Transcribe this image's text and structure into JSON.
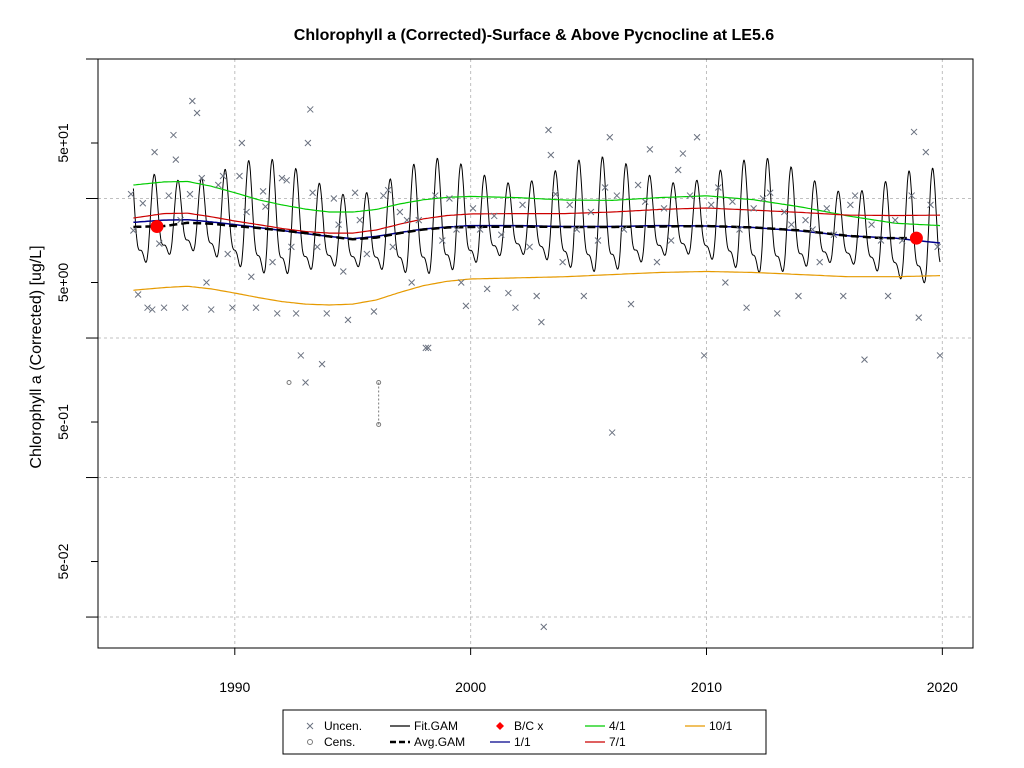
{
  "chart_data": {
    "type": "scatter",
    "title": "Chlorophyll a (Corrected)-Surface & Above Pycnocline at LE5.6",
    "ylabel": "Chlorophyll a (Corrected) [ug/L]",
    "y_scale": "log",
    "xlim": [
      1984.2,
      2021.3
    ],
    "ylim": [
      0.012,
      200
    ],
    "x_ticks": [
      1990,
      2000,
      2010,
      2020
    ],
    "x_tick_labels": [
      "1990",
      "2000",
      "2010",
      "2020"
    ],
    "y_ticks": [
      0.05,
      0.5,
      5,
      50
    ],
    "y_tick_labels": [
      "5e-02",
      "5e-01",
      "5e+00",
      "5e+01"
    ],
    "y_minor_ticks": [
      0.02,
      0.2,
      2,
      20,
      200
    ],
    "grid": true,
    "legend_position": "bottom",
    "colors": {
      "uncen": "#6b7280",
      "cens": "#7a7a7a",
      "fit_gam": "#000000",
      "avg_gam": "#000000",
      "bc": "#ff0000",
      "d11": "#00008b",
      "d41": "#00cc00",
      "d71": "#cc0000",
      "d101": "#e69a00"
    },
    "legend": [
      {
        "key": "uncen",
        "label": "Uncen.",
        "symbol": "cross"
      },
      {
        "key": "cens",
        "label": "Cens.",
        "symbol": "circle"
      },
      {
        "key": "fit_gam",
        "label": "Fit.GAM",
        "symbol": "line"
      },
      {
        "key": "avg_gam",
        "label": "Avg.GAM",
        "symbol": "dashed"
      },
      {
        "key": "bc",
        "label": "B/C x",
        "symbol": "diamond"
      },
      {
        "key": "d11",
        "label": "1/1",
        "symbol": "line"
      },
      {
        "key": "d41",
        "label": "4/1",
        "symbol": "line"
      },
      {
        "key": "d71",
        "label": "7/1",
        "symbol": "line"
      },
      {
        "key": "d101",
        "label": "10/1",
        "symbol": "line"
      }
    ],
    "bc_points": [
      {
        "x": 1986.7,
        "y": 12.6
      },
      {
        "x": 2018.9,
        "y": 10.4
      }
    ],
    "censored": [
      {
        "x": 1992.3,
        "y": 0.96
      },
      {
        "x": 1996.1,
        "y": 0.96,
        "low": 0.48
      }
    ],
    "series": [
      {
        "name": "Avg.GAM",
        "x": [
          1985.7,
          1987,
          1988,
          1989,
          1990,
          1991,
          1992,
          1993,
          1994,
          1995,
          1996,
          1997,
          1998,
          1999,
          2000,
          2002,
          2004,
          2006,
          2008,
          2010,
          2012,
          2014,
          2016,
          2017.5,
          2018.9
        ],
        "y": [
          12.5,
          12.7,
          13.4,
          13.2,
          12.7,
          12.3,
          11.8,
          11.3,
          10.7,
          10.2,
          10.5,
          11.3,
          12.0,
          12.4,
          12.5,
          12.6,
          12.5,
          12.5,
          12.6,
          12.7,
          12.4,
          11.8,
          10.8,
          10.4,
          10.4
        ]
      },
      {
        "name": "1/1",
        "x": [
          1985.7,
          1987,
          1988,
          1989,
          1990,
          1991,
          1992,
          1993,
          1994,
          1995,
          1996,
          1997,
          1998,
          1999,
          2000,
          2002,
          2004,
          2006,
          2008,
          2010,
          2012,
          2014,
          2016,
          2018,
          2019.9
        ],
        "y": [
          13.5,
          14.0,
          14.1,
          13.6,
          13.0,
          12.4,
          11.8,
          11.2,
          10.7,
          10.3,
          10.7,
          11.4,
          12.1,
          12.5,
          12.8,
          12.8,
          12.6,
          12.6,
          12.8,
          12.7,
          12.4,
          11.7,
          10.8,
          10.4,
          9.6
        ]
      },
      {
        "name": "4/1",
        "x": [
          1985.7,
          1987,
          1988,
          1989,
          1990,
          1991,
          1992,
          1993,
          1994,
          1995,
          1996,
          1997,
          1998,
          1999,
          2000,
          2002,
          2004,
          2006,
          2008,
          2010,
          2012,
          2014,
          2016,
          2018,
          2019.9
        ],
        "y": [
          25.0,
          26.3,
          26.5,
          24.5,
          22.0,
          19.6,
          18.0,
          16.8,
          16.0,
          16.0,
          16.7,
          18.3,
          19.6,
          20.4,
          20.7,
          20.3,
          19.5,
          19.4,
          20.3,
          20.9,
          19.6,
          17.4,
          15.0,
          13.3,
          12.8
        ]
      },
      {
        "name": "7/1",
        "x": [
          1985.7,
          1987,
          1988,
          1989,
          1990,
          1991,
          1992,
          1993,
          1994,
          1995,
          1996,
          1997,
          1998,
          1999,
          2000,
          2002,
          2004,
          2006,
          2008,
          2010,
          2012,
          2014,
          2016,
          2018,
          2019.9
        ],
        "y": [
          14.5,
          15.6,
          15.7,
          14.8,
          13.8,
          13.0,
          12.2,
          11.6,
          11.3,
          11.3,
          11.9,
          13.1,
          14.3,
          15.1,
          15.5,
          15.6,
          15.6,
          16.0,
          16.7,
          17.1,
          16.5,
          15.9,
          15.2,
          15.1,
          15.2
        ]
      },
      {
        "name": "10/1",
        "x": [
          1985.7,
          1987,
          1988,
          1989,
          1990,
          1991,
          1992,
          1993,
          1994,
          1995,
          1996,
          1997,
          1998,
          1999,
          2000,
          2002,
          2004,
          2006,
          2008,
          2010,
          2012,
          2014,
          2016,
          2018,
          2019.9
        ],
        "y": [
          4.4,
          4.6,
          4.7,
          4.5,
          4.2,
          3.9,
          3.65,
          3.5,
          3.45,
          3.5,
          3.75,
          4.25,
          4.75,
          5.1,
          5.3,
          5.4,
          5.5,
          5.7,
          5.9,
          6.0,
          5.9,
          5.7,
          5.5,
          5.5,
          5.6
        ]
      }
    ],
    "uncen_points": [
      {
        "x": 1985.6,
        "y": 21.5
      },
      {
        "x": 1985.7,
        "y": 11.8
      },
      {
        "x": 1985.9,
        "y": 4.1
      },
      {
        "x": 1986.1,
        "y": 18.5
      },
      {
        "x": 1986.3,
        "y": 3.3
      },
      {
        "x": 1986.5,
        "y": 3.2
      },
      {
        "x": 1986.6,
        "y": 43.0
      },
      {
        "x": 1986.8,
        "y": 9.5
      },
      {
        "x": 1987.0,
        "y": 3.3
      },
      {
        "x": 1987.2,
        "y": 21.0
      },
      {
        "x": 1987.4,
        "y": 57.0
      },
      {
        "x": 1987.5,
        "y": 38.0
      },
      {
        "x": 1987.7,
        "y": 14.0
      },
      {
        "x": 1987.9,
        "y": 3.3
      },
      {
        "x": 1988.1,
        "y": 21.5
      },
      {
        "x": 1988.2,
        "y": 100.0
      },
      {
        "x": 1988.4,
        "y": 82.0
      },
      {
        "x": 1988.6,
        "y": 28.0
      },
      {
        "x": 1988.8,
        "y": 5.0
      },
      {
        "x": 1989.0,
        "y": 3.2
      },
      {
        "x": 1989.3,
        "y": 25.0
      },
      {
        "x": 1989.5,
        "y": 29.0
      },
      {
        "x": 1989.7,
        "y": 8.0
      },
      {
        "x": 1989.9,
        "y": 3.3
      },
      {
        "x": 1990.2,
        "y": 29.0
      },
      {
        "x": 1990.3,
        "y": 50.0
      },
      {
        "x": 1990.5,
        "y": 16.0
      },
      {
        "x": 1990.7,
        "y": 5.5
      },
      {
        "x": 1990.9,
        "y": 3.3
      },
      {
        "x": 1991.2,
        "y": 22.5
      },
      {
        "x": 1991.3,
        "y": 17.5
      },
      {
        "x": 1991.6,
        "y": 7.0
      },
      {
        "x": 1991.8,
        "y": 3.0
      },
      {
        "x": 1992.0,
        "y": 28.0
      },
      {
        "x": 1992.2,
        "y": 27.0
      },
      {
        "x": 1992.4,
        "y": 9.0
      },
      {
        "x": 1992.6,
        "y": 3.0
      },
      {
        "x": 1992.8,
        "y": 1.5
      },
      {
        "x": 1993.0,
        "y": 0.96
      },
      {
        "x": 1993.2,
        "y": 87.0
      },
      {
        "x": 1993.1,
        "y": 50.0
      },
      {
        "x": 1993.3,
        "y": 22.0
      },
      {
        "x": 1993.5,
        "y": 9.0
      },
      {
        "x": 1993.7,
        "y": 1.3
      },
      {
        "x": 1993.9,
        "y": 3.0
      },
      {
        "x": 1994.2,
        "y": 20.0
      },
      {
        "x": 1994.4,
        "y": 13.0
      },
      {
        "x": 1994.6,
        "y": 6.0
      },
      {
        "x": 1994.8,
        "y": 2.7
      },
      {
        "x": 1995.1,
        "y": 22.0
      },
      {
        "x": 1995.3,
        "y": 14.0
      },
      {
        "x": 1995.6,
        "y": 8.0
      },
      {
        "x": 1995.9,
        "y": 3.1
      },
      {
        "x": 1996.3,
        "y": 21.0
      },
      {
        "x": 1996.5,
        "y": 23.0
      },
      {
        "x": 1996.7,
        "y": 9.0
      },
      {
        "x": 1997.0,
        "y": 16.0
      },
      {
        "x": 1997.3,
        "y": 14.0
      },
      {
        "x": 1997.5,
        "y": 5.0
      },
      {
        "x": 1997.8,
        "y": 14.0
      },
      {
        "x": 1998.1,
        "y": 1.7
      },
      {
        "x": 1998.2,
        "y": 1.7
      },
      {
        "x": 1998.5,
        "y": 21.0
      },
      {
        "x": 1998.8,
        "y": 10.0
      },
      {
        "x": 1999.1,
        "y": 20.0
      },
      {
        "x": 1999.4,
        "y": 12.0
      },
      {
        "x": 1999.6,
        "y": 5.0
      },
      {
        "x": 1999.8,
        "y": 3.4
      },
      {
        "x": 2000.1,
        "y": 17.0
      },
      {
        "x": 2000.4,
        "y": 12.0
      },
      {
        "x": 2000.7,
        "y": 4.5
      },
      {
        "x": 2001.0,
        "y": 15.0
      },
      {
        "x": 2001.3,
        "y": 11.0
      },
      {
        "x": 2001.6,
        "y": 4.2
      },
      {
        "x": 2001.9,
        "y": 3.3
      },
      {
        "x": 2002.2,
        "y": 18.0
      },
      {
        "x": 2002.5,
        "y": 9.0
      },
      {
        "x": 2002.8,
        "y": 4.0
      },
      {
        "x": 2003.0,
        "y": 2.6
      },
      {
        "x": 2003.1,
        "y": 0.017
      },
      {
        "x": 2003.3,
        "y": 62.0
      },
      {
        "x": 2003.4,
        "y": 41.0
      },
      {
        "x": 2003.6,
        "y": 21.5
      },
      {
        "x": 2003.9,
        "y": 7.0
      },
      {
        "x": 2004.2,
        "y": 18.0
      },
      {
        "x": 2004.5,
        "y": 12.0
      },
      {
        "x": 2004.8,
        "y": 4.0
      },
      {
        "x": 2005.1,
        "y": 16.0
      },
      {
        "x": 2005.4,
        "y": 10.0
      },
      {
        "x": 2005.7,
        "y": 24.0
      },
      {
        "x": 2005.9,
        "y": 55.0
      },
      {
        "x": 2006.0,
        "y": 0.42
      },
      {
        "x": 2006.2,
        "y": 21.0
      },
      {
        "x": 2006.5,
        "y": 12.0
      },
      {
        "x": 2006.8,
        "y": 3.5
      },
      {
        "x": 2007.1,
        "y": 25.0
      },
      {
        "x": 2007.4,
        "y": 19.0
      },
      {
        "x": 2007.6,
        "y": 45.0
      },
      {
        "x": 2007.9,
        "y": 7.0
      },
      {
        "x": 2008.2,
        "y": 17.0
      },
      {
        "x": 2008.5,
        "y": 10.0
      },
      {
        "x": 2008.8,
        "y": 32.0
      },
      {
        "x": 2009.0,
        "y": 42.0
      },
      {
        "x": 2009.3,
        "y": 21.0
      },
      {
        "x": 2009.6,
        "y": 55.0
      },
      {
        "x": 2009.9,
        "y": 1.5
      },
      {
        "x": 2010.2,
        "y": 18.0
      },
      {
        "x": 2010.5,
        "y": 24.0
      },
      {
        "x": 2010.8,
        "y": 5.0
      },
      {
        "x": 2011.1,
        "y": 19.0
      },
      {
        "x": 2011.4,
        "y": 12.0
      },
      {
        "x": 2011.7,
        "y": 3.3
      },
      {
        "x": 2012.0,
        "y": 17.0
      },
      {
        "x": 2012.4,
        "y": 20.0
      },
      {
        "x": 2012.7,
        "y": 22.0
      },
      {
        "x": 2013.0,
        "y": 3.0
      },
      {
        "x": 2013.3,
        "y": 16.0
      },
      {
        "x": 2013.6,
        "y": 13.0
      },
      {
        "x": 2013.9,
        "y": 4.0
      },
      {
        "x": 2014.2,
        "y": 14.0
      },
      {
        "x": 2014.5,
        "y": 12.0
      },
      {
        "x": 2014.8,
        "y": 7.0
      },
      {
        "x": 2015.1,
        "y": 17.0
      },
      {
        "x": 2015.4,
        "y": 11.0
      },
      {
        "x": 2015.8,
        "y": 4.0
      },
      {
        "x": 2016.1,
        "y": 18.0
      },
      {
        "x": 2016.3,
        "y": 21.0
      },
      {
        "x": 2016.7,
        "y": 1.4
      },
      {
        "x": 2017.0,
        "y": 13.0
      },
      {
        "x": 2017.4,
        "y": 10.0
      },
      {
        "x": 2017.7,
        "y": 4.0
      },
      {
        "x": 2018.0,
        "y": 14.0
      },
      {
        "x": 2018.3,
        "y": 10.0
      },
      {
        "x": 2018.7,
        "y": 21.0
      },
      {
        "x": 2018.8,
        "y": 60.0
      },
      {
        "x": 2019.0,
        "y": 2.8
      },
      {
        "x": 2019.3,
        "y": 43.0
      },
      {
        "x": 2019.5,
        "y": 18.0
      },
      {
        "x": 2019.8,
        "y": 9.0
      },
      {
        "x": 2019.9,
        "y": 1.5
      }
    ]
  }
}
